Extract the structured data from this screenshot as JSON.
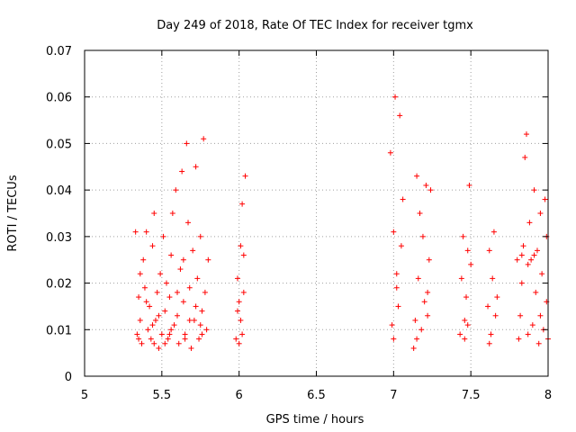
{
  "chart_data": {
    "type": "scatter",
    "title": "Day 249 of 2018, Rate Of TEC Index for receiver tgmx",
    "xlabel": "GPS time / hours",
    "ylabel": "ROTI / TECUs",
    "xlim": [
      5,
      8
    ],
    "ylim": [
      0,
      0.07
    ],
    "xticks": [
      "5",
      "5.5",
      "6",
      "6.5",
      "7",
      "7.5",
      "8"
    ],
    "yticks": [
      "0",
      "0.01",
      "0.02",
      "0.03",
      "0.04",
      "0.05",
      "0.06",
      "0.07"
    ],
    "grid": true,
    "marker": "+",
    "color": "#ff0000",
    "series": [
      {
        "name": "ROTI",
        "points": [
          [
            5.33,
            0.031
          ],
          [
            5.34,
            0.009
          ],
          [
            5.35,
            0.017
          ],
          [
            5.36,
            0.012
          ],
          [
            5.37,
            0.007
          ],
          [
            5.38,
            0.025
          ],
          [
            5.39,
            0.019
          ],
          [
            5.4,
            0.031
          ],
          [
            5.41,
            0.01
          ],
          [
            5.42,
            0.015
          ],
          [
            5.43,
            0.008
          ],
          [
            5.44,
            0.028
          ],
          [
            5.45,
            0.035
          ],
          [
            5.46,
            0.012
          ],
          [
            5.47,
            0.018
          ],
          [
            5.48,
            0.006
          ],
          [
            5.49,
            0.022
          ],
          [
            5.5,
            0.009
          ],
          [
            5.51,
            0.03
          ],
          [
            5.52,
            0.014
          ],
          [
            5.53,
            0.02
          ],
          [
            5.54,
            0.008
          ],
          [
            5.55,
            0.017
          ],
          [
            5.56,
            0.026
          ],
          [
            5.57,
            0.035
          ],
          [
            5.58,
            0.011
          ],
          [
            5.59,
            0.04
          ],
          [
            5.6,
            0.013
          ],
          [
            5.61,
            0.007
          ],
          [
            5.62,
            0.023
          ],
          [
            5.63,
            0.044
          ],
          [
            5.64,
            0.016
          ],
          [
            5.65,
            0.009
          ],
          [
            5.66,
            0.05
          ],
          [
            5.67,
            0.033
          ],
          [
            5.68,
            0.019
          ],
          [
            5.69,
            0.006
          ],
          [
            5.7,
            0.027
          ],
          [
            5.71,
            0.012
          ],
          [
            5.72,
            0.045
          ],
          [
            5.73,
            0.021
          ],
          [
            5.74,
            0.008
          ],
          [
            5.75,
            0.03
          ],
          [
            5.76,
            0.014
          ],
          [
            5.77,
            0.051
          ],
          [
            5.78,
            0.018
          ],
          [
            5.79,
            0.01
          ],
          [
            5.8,
            0.025
          ],
          [
            5.36,
            0.022
          ],
          [
            5.4,
            0.016
          ],
          [
            5.44,
            0.011
          ],
          [
            5.48,
            0.013
          ],
          [
            5.52,
            0.007
          ],
          [
            5.56,
            0.01
          ],
          [
            5.6,
            0.018
          ],
          [
            5.64,
            0.025
          ],
          [
            5.68,
            0.012
          ],
          [
            5.72,
            0.015
          ],
          [
            5.76,
            0.009
          ],
          [
            5.35,
            0.008
          ],
          [
            5.45,
            0.007
          ],
          [
            5.55,
            0.009
          ],
          [
            5.65,
            0.008
          ],
          [
            5.75,
            0.011
          ],
          [
            5.98,
            0.008
          ],
          [
            5.99,
            0.021
          ],
          [
            6.0,
            0.016
          ],
          [
            6.01,
            0.012
          ],
          [
            6.02,
            0.037
          ],
          [
            6.03,
            0.026
          ],
          [
            6.04,
            0.043
          ],
          [
            6.0,
            0.007
          ],
          [
            6.02,
            0.009
          ],
          [
            6.01,
            0.028
          ],
          [
            5.99,
            0.014
          ],
          [
            6.03,
            0.018
          ],
          [
            6.98,
            0.048
          ],
          [
            6.99,
            0.011
          ],
          [
            7.0,
            0.031
          ],
          [
            7.01,
            0.06
          ],
          [
            7.02,
            0.022
          ],
          [
            7.03,
            0.015
          ],
          [
            7.04,
            0.056
          ],
          [
            7.05,
            0.028
          ],
          [
            7.06,
            0.038
          ],
          [
            7.0,
            0.008
          ],
          [
            7.02,
            0.019
          ],
          [
            7.13,
            0.006
          ],
          [
            7.14,
            0.012
          ],
          [
            7.15,
            0.043
          ],
          [
            7.16,
            0.021
          ],
          [
            7.17,
            0.035
          ],
          [
            7.18,
            0.01
          ],
          [
            7.19,
            0.03
          ],
          [
            7.2,
            0.016
          ],
          [
            7.21,
            0.041
          ],
          [
            7.22,
            0.013
          ],
          [
            7.23,
            0.025
          ],
          [
            7.24,
            0.04
          ],
          [
            7.15,
            0.008
          ],
          [
            7.22,
            0.018
          ],
          [
            7.43,
            0.009
          ],
          [
            7.44,
            0.021
          ],
          [
            7.45,
            0.03
          ],
          [
            7.46,
            0.012
          ],
          [
            7.47,
            0.017
          ],
          [
            7.48,
            0.027
          ],
          [
            7.49,
            0.041
          ],
          [
            7.5,
            0.024
          ],
          [
            7.46,
            0.008
          ],
          [
            7.48,
            0.011
          ],
          [
            7.61,
            0.015
          ],
          [
            7.62,
            0.027
          ],
          [
            7.63,
            0.009
          ],
          [
            7.64,
            0.021
          ],
          [
            7.65,
            0.031
          ],
          [
            7.66,
            0.013
          ],
          [
            7.67,
            0.017
          ],
          [
            7.62,
            0.007
          ],
          [
            7.8,
            0.025
          ],
          [
            7.81,
            0.008
          ],
          [
            7.82,
            0.013
          ],
          [
            7.83,
            0.02
          ],
          [
            7.84,
            0.028
          ],
          [
            7.85,
            0.047
          ],
          [
            7.86,
            0.052
          ],
          [
            7.87,
            0.009
          ],
          [
            7.88,
            0.033
          ],
          [
            7.89,
            0.025
          ],
          [
            7.9,
            0.011
          ],
          [
            7.91,
            0.04
          ],
          [
            7.92,
            0.018
          ],
          [
            7.93,
            0.027
          ],
          [
            7.94,
            0.007
          ],
          [
            7.95,
            0.035
          ],
          [
            7.96,
            0.022
          ],
          [
            7.97,
            0.01
          ],
          [
            7.98,
            0.038
          ],
          [
            7.99,
            0.016
          ],
          [
            8.0,
            0.008
          ],
          [
            7.83,
            0.026
          ],
          [
            7.87,
            0.024
          ],
          [
            7.91,
            0.026
          ],
          [
            7.95,
            0.013
          ],
          [
            7.99,
            0.03
          ]
        ]
      }
    ]
  }
}
